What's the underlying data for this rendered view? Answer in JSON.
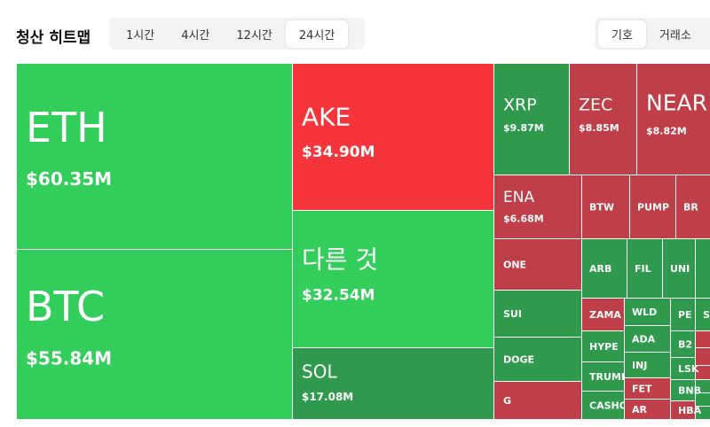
{
  "header": {
    "title": "청산 히트맵",
    "tabs": [
      "1시간",
      "4시간",
      "12시간",
      "24시간"
    ],
    "active_tab": 3,
    "toggle": [
      "기호",
      "거래소"
    ],
    "active_toggle": 0
  },
  "tiles": [
    {
      "label": "ETH",
      "value": "$60.35M",
      "color": "#32cd5a"
    },
    {
      "label": "BTC",
      "value": "$55.84M",
      "color": "#32cd5a"
    },
    {
      "label": "AKE",
      "value": "$34.90M",
      "color": "#f5353b"
    },
    {
      "label": "다른 것",
      "value": "$32.54M",
      "color": "#32cd5a"
    },
    {
      "label": "SOL",
      "value": "$17.08M",
      "color": "#2f9a4c"
    },
    {
      "label": "XRP",
      "value": "$9.87M",
      "color": "#2f9a4c"
    },
    {
      "label": "ZEC",
      "value": "$8.85M",
      "color": "#bf3f48"
    },
    {
      "label": "NEAR",
      "value": "$8.82M",
      "color": "#bf3f48"
    },
    {
      "label": "ENA",
      "value": "$6.68M",
      "color": "#bf3f48"
    },
    {
      "label": "BTW",
      "color": "#bf3f48"
    },
    {
      "label": "PUMP",
      "color": "#bf3f48"
    },
    {
      "label": "BR",
      "color": "#bf3f48"
    },
    {
      "label": "ONE",
      "color": "#bf3f48"
    },
    {
      "label": "SUI",
      "color": "#2f9a4c"
    },
    {
      "label": "DOGE",
      "color": "#2f9a4c"
    },
    {
      "label": "G",
      "color": "#bf3f48"
    },
    {
      "label": "ARB",
      "color": "#2f9a4c"
    },
    {
      "label": "FIL",
      "color": "#2f9a4c"
    },
    {
      "label": "UNI",
      "color": "#2f9a4c"
    },
    {
      "label": "ZAMA",
      "color": "#bf3f48"
    },
    {
      "label": "HYPE",
      "color": "#2f9a4c"
    },
    {
      "label": "TRUMP",
      "color": "#2f9a4c"
    },
    {
      "label": "CASHO",
      "color": "#2f9a4c"
    },
    {
      "label": "WLD",
      "color": "#2f9a4c"
    },
    {
      "label": "ADA",
      "color": "#2f9a4c"
    },
    {
      "label": "INJ",
      "color": "#2f9a4c"
    },
    {
      "label": "FET",
      "color": "#bf3f48"
    },
    {
      "label": "AR",
      "color": "#bf3f48"
    },
    {
      "label": "PE",
      "color": "#2f9a4c"
    },
    {
      "label": "SM",
      "color": "#2f9a4c"
    },
    {
      "label": "B2",
      "color": "#2f9a4c"
    },
    {
      "label": "LSK",
      "color": "#2f9a4c"
    },
    {
      "label": "BNB",
      "color": "#2f9a4c"
    },
    {
      "label": "HBA",
      "color": "#bf3f48"
    }
  ]
}
